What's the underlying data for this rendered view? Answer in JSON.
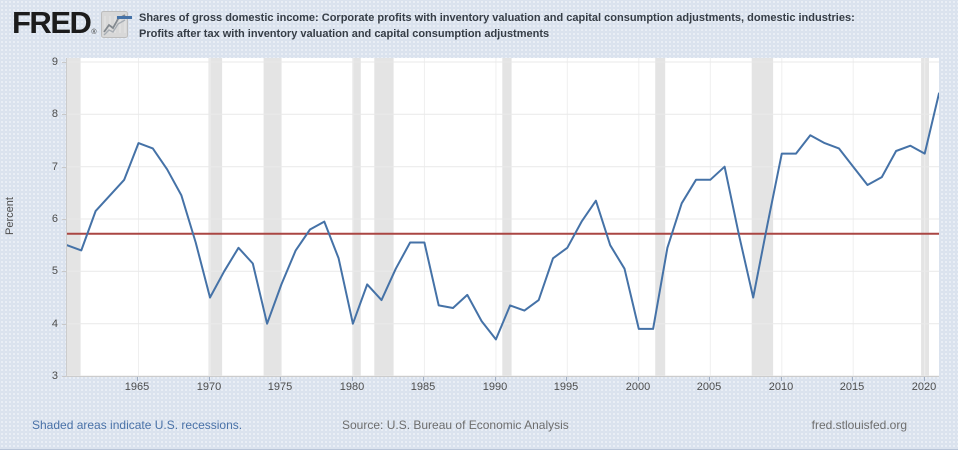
{
  "header": {
    "logo_text": "FRED",
    "registered_mark": "®"
  },
  "legend": {
    "label_line1": "Shares of gross domestic income: Corporate profits with inventory valuation and capital consumption adjustments, domestic industries:",
    "label_line2": "Profits after tax with inventory valuation and capital consumption adjustments"
  },
  "footer": {
    "recession_note": "Shaded areas indicate U.S. recessions.",
    "source": "Source: U.S. Bureau of Economic Analysis",
    "site": "fred.stlouisfed.org"
  },
  "chart_data": {
    "type": "line",
    "title": "Shares of gross domestic income: Corporate profits with inventory valuation and capital consumption adjustments, domestic industries: Profits after tax with inventory valuation and capital consumption adjustments",
    "xlabel": "",
    "ylabel": "Percent",
    "ylim": [
      3,
      9
    ],
    "xlim": [
      1960,
      2021
    ],
    "y_ticks": [
      3,
      4,
      5,
      6,
      7,
      8,
      9
    ],
    "x_ticks": [
      1965,
      1970,
      1975,
      1980,
      1985,
      1990,
      1995,
      2000,
      2005,
      2010,
      2015,
      2020
    ],
    "grid": true,
    "legend_position": "top-left",
    "series": [
      {
        "name": "Profits after tax with inventory valuation and capital consumption adjustments, share of gross domestic income",
        "color": "#4572a7",
        "x": [
          1960,
          1961,
          1962,
          1963,
          1964,
          1965,
          1966,
          1967,
          1968,
          1969,
          1970,
          1971,
          1972,
          1973,
          1974,
          1975,
          1976,
          1977,
          1978,
          1979,
          1980,
          1981,
          1982,
          1983,
          1984,
          1985,
          1986,
          1987,
          1988,
          1989,
          1990,
          1991,
          1992,
          1993,
          1994,
          1995,
          1996,
          1997,
          1998,
          1999,
          2000,
          2001,
          2002,
          2003,
          2004,
          2005,
          2006,
          2007,
          2008,
          2009,
          2010,
          2011,
          2012,
          2013,
          2014,
          2015,
          2016,
          2017,
          2018,
          2019,
          2020,
          2021
        ],
        "values": [
          5.5,
          5.4,
          6.15,
          6.45,
          6.75,
          7.45,
          7.35,
          6.95,
          6.45,
          5.55,
          4.5,
          5.0,
          5.45,
          5.15,
          4.0,
          4.75,
          5.4,
          5.8,
          5.95,
          5.25,
          4.0,
          4.75,
          4.45,
          5.05,
          5.55,
          5.55,
          4.35,
          4.3,
          4.55,
          4.05,
          3.7,
          4.35,
          4.25,
          4.45,
          5.25,
          5.45,
          5.95,
          6.35,
          5.5,
          5.05,
          3.9,
          3.9,
          5.45,
          6.3,
          6.75,
          6.75,
          7.0,
          5.7,
          4.5,
          5.9,
          7.25,
          7.25,
          7.6,
          7.45,
          7.35,
          7.0,
          6.65,
          6.8,
          7.3,
          7.4,
          7.25,
          8.4
        ]
      }
    ],
    "reference_line": {
      "value": 5.72,
      "color": "#aa4643"
    },
    "recession_bands": [
      [
        1960.0,
        1960.95
      ],
      [
        1969.9,
        1970.85
      ],
      [
        1973.75,
        1975.0
      ],
      [
        1979.95,
        1980.55
      ],
      [
        1981.5,
        1982.85
      ],
      [
        1990.45,
        1991.1
      ],
      [
        2001.15,
        2001.85
      ],
      [
        2007.9,
        2009.4
      ],
      [
        2019.75,
        2020.3
      ]
    ],
    "recession_band_color": "#e4e4e4",
    "gridline_color": "#e9e9e9",
    "plot_background": "#ffffff"
  }
}
